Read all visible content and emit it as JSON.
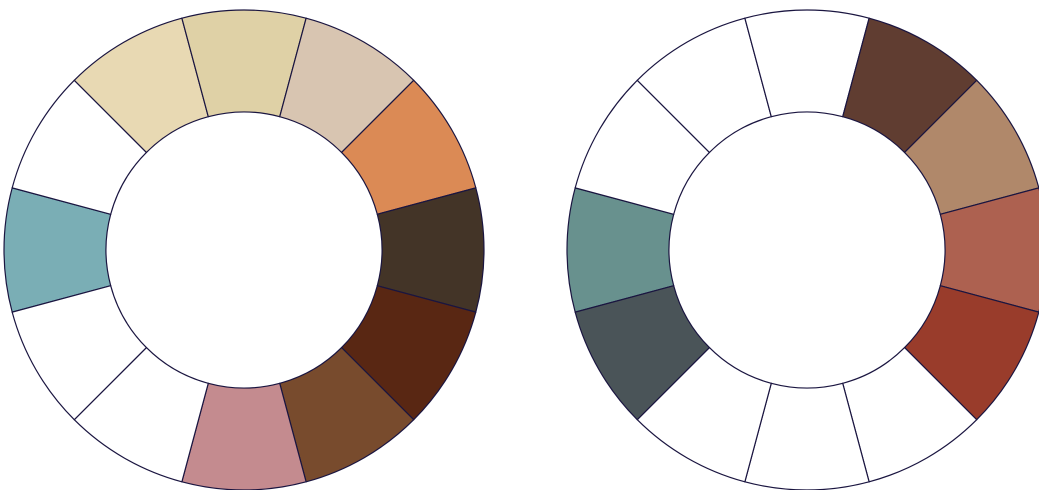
{
  "wheels": [
    {
      "name": "left-color-wheel",
      "stroke": "#1a1540",
      "segments": [
        {
          "color": "#7aaeb5"
        },
        {
          "color": "#ffffff"
        },
        {
          "color": "#e8d9b3"
        },
        {
          "color": "#dfd1a6"
        },
        {
          "color": "#d8c5b1"
        },
        {
          "color": "#db8a55"
        },
        {
          "color": "#433427"
        },
        {
          "color": "#592713"
        },
        {
          "color": "#784b2d"
        },
        {
          "color": "#c48b8f"
        },
        {
          "color": "#ffffff"
        },
        {
          "color": "#ffffff"
        }
      ]
    },
    {
      "name": "right-color-wheel",
      "stroke": "#1a1540",
      "segments": [
        {
          "color": "#68918e"
        },
        {
          "color": "#ffffff"
        },
        {
          "color": "#ffffff"
        },
        {
          "color": "#ffffff"
        },
        {
          "color": "#603d31"
        },
        {
          "color": "#b0886a"
        },
        {
          "color": "#ad6150"
        },
        {
          "color": "#993c2b"
        },
        {
          "color": "#ffffff"
        },
        {
          "color": "#ffffff"
        },
        {
          "color": "#ffffff"
        },
        {
          "color": "#4a5458"
        }
      ]
    }
  ]
}
